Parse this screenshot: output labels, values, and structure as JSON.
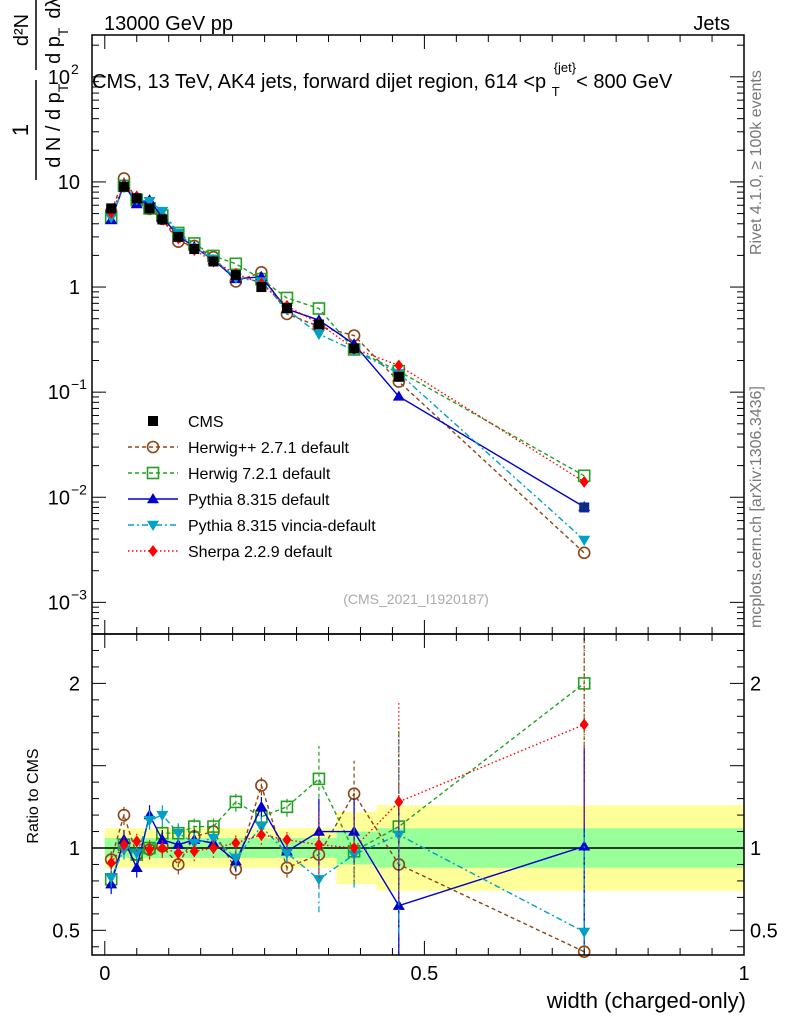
{
  "header": {
    "left": "13000 GeV pp",
    "right": "Jets",
    "analysis_id": "(CMS_2021_I1920187)",
    "side_top": "Rivet 4.1.0, ≥ 100k events",
    "side_bottom": "mcplots.cern.ch [arXiv:1306.3436]"
  },
  "main_plot": {
    "title": "CMS, 13 TeV, AK4 jets, forward dijet region, 614 <p_T^{jet}< 800 GeV",
    "ylabel": "1/(dN/dpT) d²N/(dpT dλ)",
    "yscale": "log",
    "ylim": [
      0.0005,
      250
    ],
    "y_tick_labels": [
      {
        "value": 0.001,
        "base": "10",
        "exp": "−3"
      },
      {
        "value": 0.01,
        "base": "10",
        "exp": "−2"
      },
      {
        "value": 0.1,
        "base": "10",
        "exp": "−1"
      },
      {
        "value": 1,
        "base": "1",
        "exp": ""
      },
      {
        "value": 10,
        "base": "10",
        "exp": ""
      },
      {
        "value": 100,
        "base": "10",
        "exp": "2"
      }
    ]
  },
  "ratio_plot": {
    "ylabel": "Ratio to CMS",
    "ylim": [
      0.35,
      2.3
    ],
    "y_ticks": [
      0.5,
      1,
      2
    ],
    "y_tick_labels": [
      "0.5",
      "1",
      "2"
    ]
  },
  "x_axis": {
    "label": "width (charged-only)",
    "xlim": [
      -0.02,
      1.0
    ],
    "ticks": [
      0,
      0.5,
      1
    ],
    "tick_labels": [
      "0",
      "0.5",
      "1"
    ]
  },
  "chart_data": {
    "type": "line",
    "x": [
      0.01,
      0.03,
      0.05,
      0.07,
      0.09,
      0.115,
      0.14,
      0.17,
      0.205,
      0.245,
      0.285,
      0.335,
      0.39,
      0.46,
      0.75
    ],
    "data": {
      "name": "CMS",
      "values": [
        5.6,
        9.0,
        7.0,
        5.6,
        4.4,
        3.0,
        2.3,
        1.75,
        1.3,
        1.0,
        0.63,
        0.44,
        0.26,
        0.14,
        0.008
      ],
      "ratio_bands": {
        "stat": [
          0.06,
          0.06,
          0.06,
          0.06,
          0.06,
          0.06,
          0.06,
          0.06,
          0.06,
          0.06,
          0.06,
          0.06,
          0.1,
          0.12,
          0.12
        ],
        "total": [
          0.12,
          0.12,
          0.12,
          0.12,
          0.12,
          0.12,
          0.12,
          0.12,
          0.12,
          0.12,
          0.12,
          0.12,
          0.22,
          0.26,
          0.26
        ]
      }
    },
    "series": [
      {
        "name": "Herwig++ 2.7.1 default",
        "color": "#8B4513",
        "dash": "4,3",
        "marker": "circle-open",
        "ratio": [
          0.93,
          1.2,
          0.96,
          0.99,
          1.01,
          0.9,
          1.07,
          1.1,
          0.87,
          1.38,
          0.88,
          0.96,
          1.33,
          0.9,
          0.37
        ]
      },
      {
        "name": "Herwig 7.2.1 default",
        "color": "#22A022",
        "dash": "4,3",
        "marker": "square-open",
        "ratio": [
          0.81,
          1.02,
          0.96,
          1.0,
          1.09,
          1.09,
          1.13,
          1.13,
          1.28,
          1.19,
          1.25,
          1.42,
          0.98,
          1.13,
          2.0
        ]
      },
      {
        "name": "Pythia 8.315 default",
        "color": "#0000CC",
        "dash": "",
        "marker": "triangle-up",
        "ratio": [
          0.78,
          1.05,
          0.88,
          1.2,
          1.05,
          1.02,
          1.05,
          1.03,
          0.92,
          1.25,
          0.98,
          1.1,
          1.1,
          0.65,
          1.01
        ]
      },
      {
        "name": "Pythia 8.315 vincia-default",
        "color": "#00A0C8",
        "dash": "6,3,2,3",
        "marker": "triangle-down",
        "ratio": [
          0.82,
          0.99,
          0.97,
          1.17,
          1.2,
          1.09,
          1.03,
          1.06,
          0.94,
          1.13,
          0.97,
          0.81,
          0.96,
          1.08,
          0.49
        ]
      },
      {
        "name": "Sherpa 2.2.9 default",
        "color": "#FF0000",
        "dash": "1.5,2.5",
        "marker": "diamond",
        "ratio": [
          0.91,
          1.02,
          1.04,
          0.99,
          1.0,
          0.97,
          0.98,
          1.0,
          1.03,
          1.08,
          1.05,
          1.02,
          1.0,
          1.28,
          1.75
        ]
      }
    ]
  }
}
